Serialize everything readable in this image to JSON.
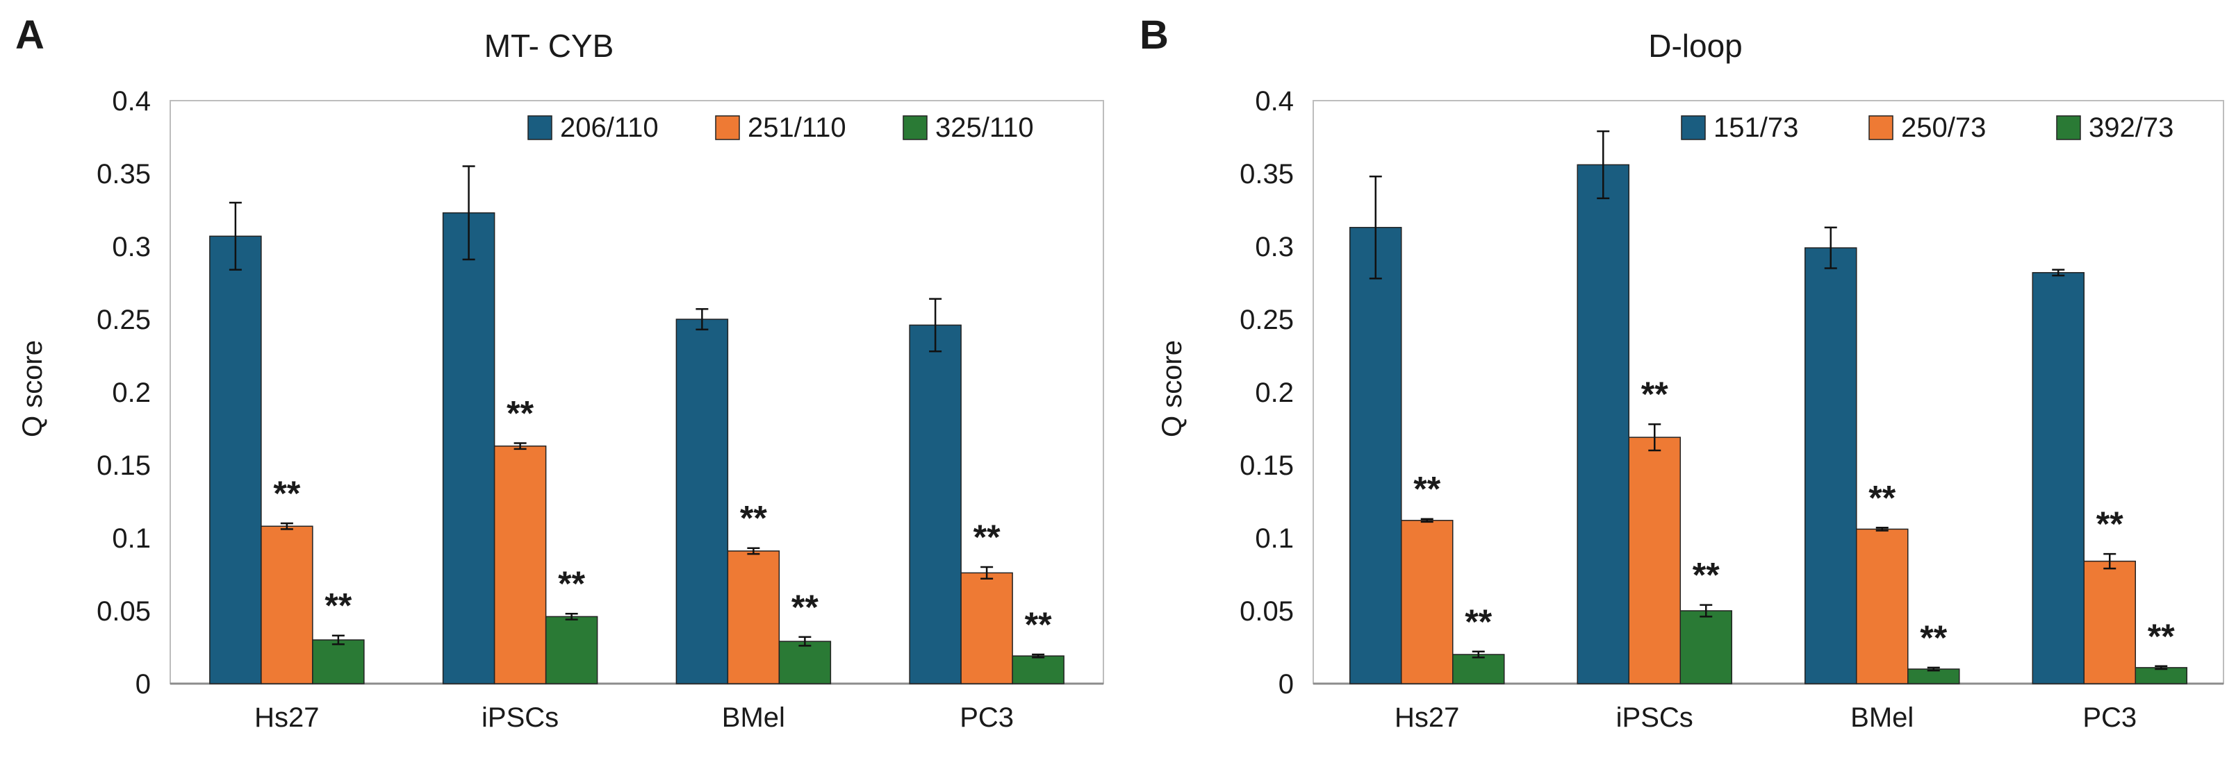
{
  "panel_letters": [
    "A",
    "B"
  ],
  "chart_data": [
    {
      "type": "bar",
      "title": "MT- CYB",
      "xlabel": "",
      "ylabel": "Q score",
      "ylim": [
        0,
        0.4
      ],
      "yticks": [
        "0",
        "0.05",
        "0.1",
        "0.15",
        "0.2",
        "0.25",
        "0.3",
        "0.35",
        "0.4"
      ],
      "categories": [
        "Hs27",
        "iPSCs",
        "BMel",
        "PC3"
      ],
      "legend_position": "top-right",
      "grid": false,
      "series": [
        {
          "name": "206/110",
          "color": "#1a5d80",
          "values": [
            0.307,
            0.323,
            0.25,
            0.246
          ],
          "errors": [
            0.023,
            0.032,
            0.007,
            0.018
          ],
          "annotations": [
            "",
            "",
            "",
            ""
          ]
        },
        {
          "name": "251/110",
          "color": "#ee7a34",
          "values": [
            0.108,
            0.163,
            0.091,
            0.076
          ],
          "errors": [
            0.002,
            0.002,
            0.002,
            0.004
          ],
          "annotations": [
            "**",
            "**",
            "**",
            "**"
          ]
        },
        {
          "name": "325/110",
          "color": "#2a7a35",
          "values": [
            0.03,
            0.046,
            0.029,
            0.019
          ],
          "errors": [
            0.003,
            0.002,
            0.003,
            0.001
          ],
          "annotations": [
            "**",
            "**",
            "**",
            "**"
          ]
        }
      ]
    },
    {
      "type": "bar",
      "title": "D-loop",
      "xlabel": "",
      "ylabel": "Q score",
      "ylim": [
        0,
        0.4
      ],
      "yticks": [
        "0",
        "0.05",
        "0.1",
        "0.15",
        "0.2",
        "0.25",
        "0.3",
        "0.35",
        "0.4"
      ],
      "categories": [
        "Hs27",
        "iPSCs",
        "BMel",
        "PC3"
      ],
      "legend_position": "top-right",
      "grid": false,
      "series": [
        {
          "name": "151/73",
          "color": "#1a5d80",
          "values": [
            0.313,
            0.356,
            0.299,
            0.282
          ],
          "errors": [
            0.035,
            0.023,
            0.014,
            0.002
          ],
          "annotations": [
            "",
            "",
            "",
            ""
          ]
        },
        {
          "name": "250/73",
          "color": "#ee7a34",
          "values": [
            0.112,
            0.169,
            0.106,
            0.084
          ],
          "errors": [
            0.001,
            0.009,
            0.001,
            0.005
          ],
          "annotations": [
            "**",
            "**",
            "**",
            "**"
          ]
        },
        {
          "name": "392/73",
          "color": "#2a7a35",
          "values": [
            0.02,
            0.05,
            0.01,
            0.011
          ],
          "errors": [
            0.002,
            0.004,
            0.001,
            0.001
          ],
          "annotations": [
            "**",
            "**",
            "**",
            "**"
          ]
        }
      ]
    }
  ]
}
